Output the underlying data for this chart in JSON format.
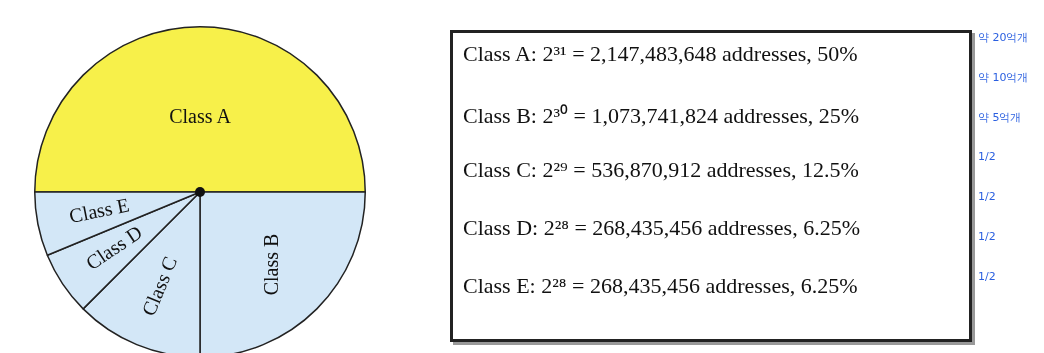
{
  "chart_data": [
    {
      "type": "pie",
      "categories": [
        "Class A",
        "Class B",
        "Class C",
        "Class D",
        "Class E"
      ],
      "values": [
        50,
        25,
        12.5,
        6.25,
        6.25
      ],
      "colors": [
        "#f7f04a",
        "#d3e7f7",
        "#d3e7f7",
        "#d3e7f7",
        "#d3e7f7"
      ],
      "legend": false
    },
    {
      "type": "other",
      "categories": [
        "Class A: 2³¹ = 2,147,483,648 addresses, 50%",
        "Class B: 2³⁰ = 1,073,741,824 addresses, 25%",
        "Class C: 2²⁹ = 536,870,912 addresses, 12.5%",
        "Class D: 2²⁸ = 268,435,456 addresses, 6.25%",
        "Class E: 2²⁸ = 268,435,456 addresses, 6.25%"
      ],
      "annotations": [
        "약 20억개",
        "약 10억개",
        "약 5억개",
        "1/2",
        "1/2",
        "1/2",
        "1/2"
      ]
    }
  ]
}
